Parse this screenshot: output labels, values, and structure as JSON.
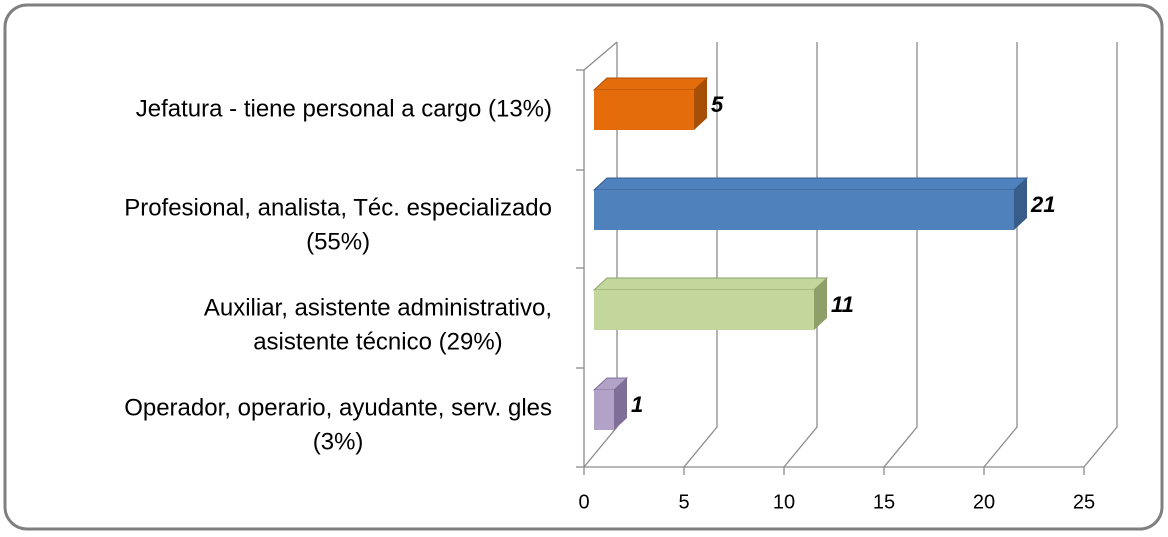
{
  "chart_data": {
    "type": "bar3d_horizontal",
    "categories": [
      [
        "Jefatura - tiene personal a cargo (13%)"
      ],
      [
        "Profesional, analista, Téc. especializado",
        "(55%)"
      ],
      [
        "Auxiliar, asistente administrativo,",
        "asistente técnico (29%)"
      ],
      [
        "Operador, operario, ayudante, serv. gles",
        "(3%)"
      ]
    ],
    "values": [
      5,
      21,
      11,
      1
    ],
    "colors": [
      "#e46c0a",
      "#4f81bd",
      "#c3d69b",
      "#b3a2c7"
    ],
    "side_colors": [
      "#a84f07",
      "#385d8a",
      "#8ea06a",
      "#7f6f98"
    ],
    "xlim": [
      0,
      25
    ],
    "xticks": [
      0,
      5,
      10,
      15,
      20,
      25
    ],
    "grid": true
  }
}
